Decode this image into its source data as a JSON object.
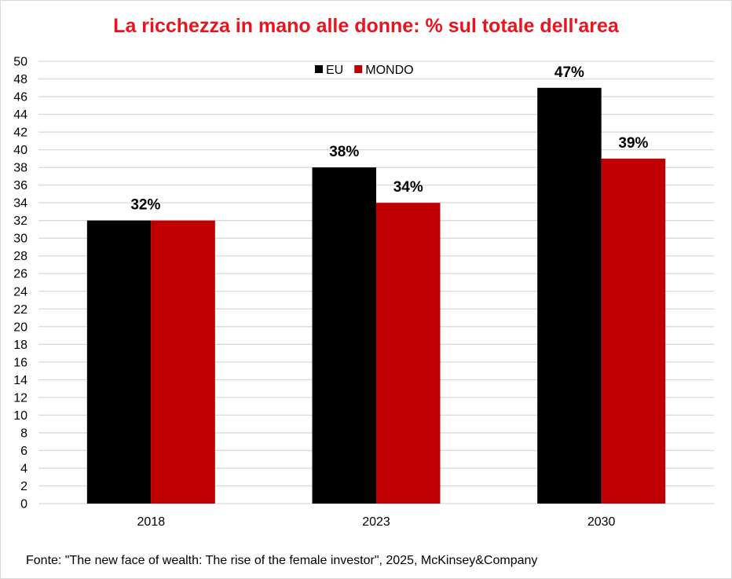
{
  "chart_data": {
    "type": "bar",
    "title": "La ricchezza in mano alle donne: % sul totale dell'area",
    "source": "Fonte: \"The new face of wealth: The rise of the female investor\", 2025, McKinsey&Company",
    "categories": [
      "2018",
      "2023",
      "2030"
    ],
    "series": [
      {
        "name": "EU",
        "values": [
          32,
          38,
          47
        ],
        "color": "#000000",
        "labels": [
          "32%",
          "38%",
          "47%"
        ]
      },
      {
        "name": "MONDO",
        "values": [
          32,
          34,
          39
        ],
        "color": "#c00000",
        "labels": [
          null,
          "34%",
          "39%"
        ]
      }
    ],
    "ylim": [
      0,
      50
    ],
    "ytick_step": 2,
    "grid": true,
    "legend": "top-center",
    "xlabel": "",
    "ylabel": ""
  }
}
